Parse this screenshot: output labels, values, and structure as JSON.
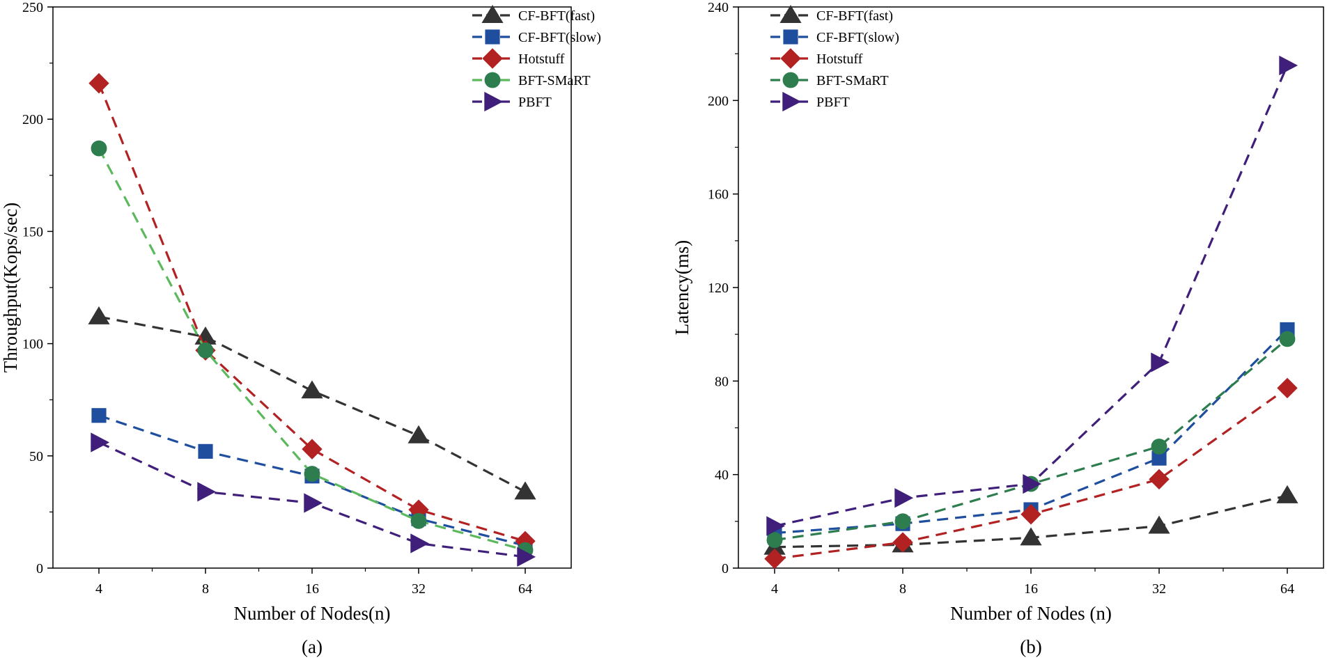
{
  "chart_data": [
    {
      "type": "line",
      "caption": "(a)",
      "xlabel": "Number of Nodes(n)",
      "ylabel": "Throughput(Kops/sec)",
      "categories": [
        "4",
        "8",
        "16",
        "32",
        "64"
      ],
      "xscale": "log2",
      "ylim": [
        0,
        250
      ],
      "yticks": [
        0,
        50,
        100,
        150,
        200,
        250
      ],
      "grid": false,
      "legend_position": "top-right",
      "series": [
        {
          "name": "CF-BFT(fast)",
          "color": "#333333",
          "marker": "triangle-up",
          "values": [
            112,
            103,
            79,
            59,
            34
          ]
        },
        {
          "name": "CF-BFT(slow)",
          "color": "#1f4e9e",
          "marker": "square",
          "values": [
            68,
            52,
            41,
            22,
            10
          ]
        },
        {
          "name": "Hotstuff",
          "color": "#b22222",
          "marker": "diamond",
          "values": [
            216,
            97,
            53,
            26,
            12
          ]
        },
        {
          "name": "BFT-SMaRT",
          "color": "#2e7d4f",
          "line_color": "#5cb85c",
          "marker": "circle",
          "values": [
            187,
            97,
            42,
            21,
            8
          ]
        },
        {
          "name": "PBFT",
          "color": "#3f1f7a",
          "marker": "triangle-right",
          "values": [
            56,
            34,
            29,
            11,
            5
          ]
        }
      ]
    },
    {
      "type": "line",
      "caption": "(b)",
      "xlabel": "Number of Nodes (n)",
      "ylabel": "Latency(ms)",
      "categories": [
        "4",
        "8",
        "16",
        "32",
        "64"
      ],
      "xscale": "log2",
      "ylim": [
        0,
        240
      ],
      "yticks": [
        0,
        40,
        80,
        120,
        160,
        200,
        240
      ],
      "grid": false,
      "legend_position": "top-left",
      "series": [
        {
          "name": "CF-BFT(fast)",
          "color": "#333333",
          "marker": "triangle-up",
          "values": [
            9,
            10,
            13,
            18,
            31
          ]
        },
        {
          "name": "CF-BFT(slow)",
          "color": "#1f4e9e",
          "marker": "square",
          "values": [
            15,
            19,
            25,
            47,
            102
          ]
        },
        {
          "name": "Hotstuff",
          "color": "#b22222",
          "marker": "diamond",
          "values": [
            4,
            11,
            23,
            38,
            77
          ]
        },
        {
          "name": "BFT-SMaRT",
          "color": "#2e7d4f",
          "marker": "circle",
          "values": [
            12,
            20,
            36,
            52,
            98
          ]
        },
        {
          "name": "PBFT",
          "color": "#3f1f7a",
          "marker": "triangle-right",
          "values": [
            18,
            30,
            36,
            88,
            215
          ]
        }
      ]
    }
  ]
}
